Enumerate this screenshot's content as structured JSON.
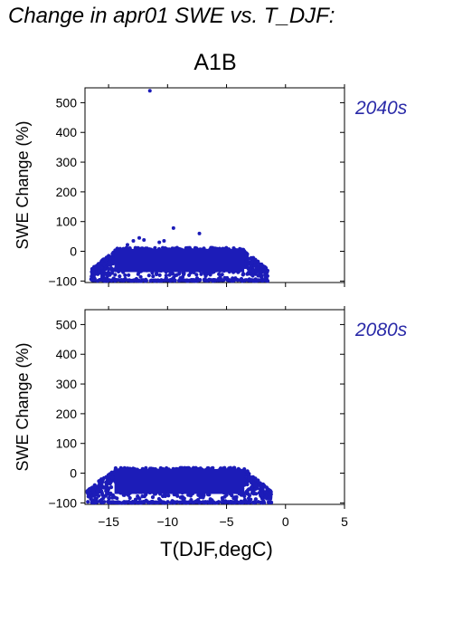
{
  "title": "Change in apr01 SWE vs. T_DJF:",
  "scenario": "A1B",
  "chart_data": [
    {
      "type": "scatter",
      "panel_label": "2040s",
      "xlabel": "T(DJF,degC)",
      "ylabel": "SWE Change (%)",
      "xlim": [
        -17,
        5
      ],
      "ylim": [
        -105,
        550
      ],
      "xticks": [
        -15,
        -10,
        -5,
        0,
        5
      ],
      "yticks": [
        -100,
        0,
        100,
        200,
        300,
        400,
        500
      ],
      "show_x_tick_labels": false,
      "cloud": {
        "x_range": [
          -16.5,
          -1.5
        ],
        "y_range": [
          -100,
          12
        ],
        "approx_points": 1200
      },
      "outliers": [
        {
          "x": -11.5,
          "y": 540
        },
        {
          "x": -9.5,
          "y": 78
        },
        {
          "x": -7.3,
          "y": 60
        },
        {
          "x": -10.3,
          "y": 35
        },
        {
          "x": -10.7,
          "y": 30
        },
        {
          "x": -12.4,
          "y": 45
        },
        {
          "x": -12.9,
          "y": 35
        },
        {
          "x": -12.0,
          "y": 38
        },
        {
          "x": -13.4,
          "y": 22
        }
      ]
    },
    {
      "type": "scatter",
      "panel_label": "2080s",
      "xlabel": "T(DJF,degC)",
      "ylabel": "SWE Change (%)",
      "xlim": [
        -17,
        5
      ],
      "ylim": [
        -105,
        550
      ],
      "xticks": [
        -15,
        -10,
        -5,
        0,
        5
      ],
      "yticks": [
        -100,
        0,
        100,
        200,
        300,
        400,
        500
      ],
      "show_x_tick_labels": true,
      "cloud": {
        "x_range": [
          -16.8,
          -1.2
        ],
        "y_range": [
          -100,
          18
        ],
        "approx_points": 1200
      },
      "outliers": []
    }
  ],
  "colors": {
    "points": "#1c1cb8",
    "period_label": "#2a2aa8",
    "axes": "#000000"
  }
}
